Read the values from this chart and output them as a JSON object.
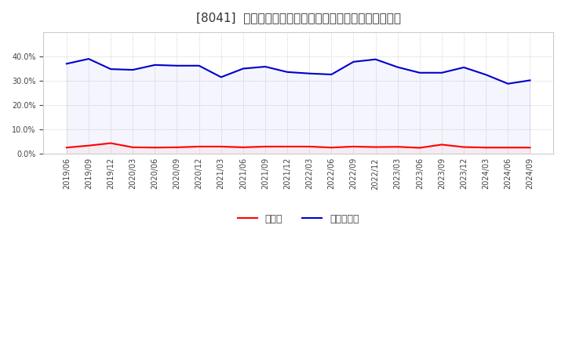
{
  "title": "[8041]  現預金、有利子負債の総資産に対する比率の推移",
  "x_labels": [
    "2019/06",
    "2019/09",
    "2019/12",
    "2020/03",
    "2020/06",
    "2020/09",
    "2020/12",
    "2021/03",
    "2021/06",
    "2021/09",
    "2021/12",
    "2022/03",
    "2022/06",
    "2022/09",
    "2022/12",
    "2023/03",
    "2023/06",
    "2023/09",
    "2023/12",
    "2024/03",
    "2024/06",
    "2024/09"
  ],
  "cash": [
    0.026,
    0.034,
    0.044,
    0.027,
    0.026,
    0.027,
    0.03,
    0.03,
    0.027,
    0.03,
    0.03,
    0.03,
    0.026,
    0.03,
    0.028,
    0.029,
    0.025,
    0.038,
    0.028,
    0.026,
    0.026,
    0.026
  ],
  "debt": [
    0.37,
    0.39,
    0.348,
    0.345,
    0.365,
    0.362,
    0.362,
    0.315,
    0.35,
    0.358,
    0.336,
    0.33,
    0.326,
    0.378,
    0.388,
    0.356,
    0.333,
    0.333,
    0.355,
    0.325,
    0.288,
    0.302
  ],
  "cash_color": "#ff0000",
  "debt_color": "#0000cc",
  "bg_color": "#ffffff",
  "plot_bg_color": "#ffffff",
  "grid_color": "#bbbbbb",
  "legend_cash": "現預金",
  "legend_debt": "有利子負債",
  "ylim": [
    0.0,
    0.5
  ],
  "yticks": [
    0.0,
    0.1,
    0.2,
    0.3,
    0.4
  ],
  "title_fontsize": 11,
  "axis_fontsize": 7,
  "legend_fontsize": 9
}
